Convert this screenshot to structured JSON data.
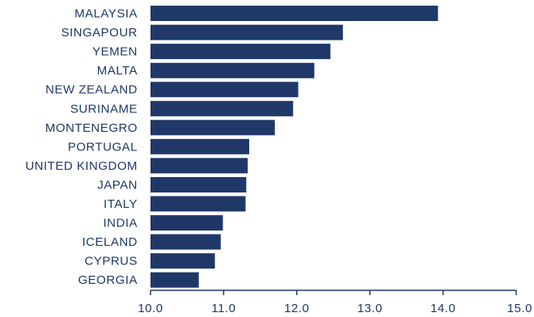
{
  "chart_data": {
    "type": "bar",
    "orientation": "horizontal",
    "title": "",
    "xlabel": "",
    "ylabel": "",
    "categories": [
      "MALAYSIA",
      "SINGAPOUR",
      "YEMEN",
      "MALTA",
      "NEW ZEALAND",
      "SURINAME",
      "MONTENEGRO",
      "PORTUGAL",
      "UNITED KINGDOM",
      "JAPAN",
      "ITALY",
      "INDIA",
      "ICELAND",
      "CYPRUS",
      "GEORGIA"
    ],
    "values": [
      13.93,
      12.63,
      12.46,
      12.24,
      12.02,
      11.95,
      11.7,
      11.35,
      11.33,
      11.31,
      11.3,
      10.99,
      10.96,
      10.88,
      10.66
    ],
    "xlim": [
      10.0,
      15.0
    ],
    "xticks": [
      "10.0",
      "11.0",
      "12.0",
      "13.0",
      "14.0",
      "15.0"
    ],
    "xtick_values": [
      10,
      11,
      12,
      13,
      14,
      15
    ],
    "grid": false,
    "legend": "none",
    "bar_color": "#1f3868",
    "text_color": "#1f3868",
    "axis_color": "#1f3868"
  }
}
